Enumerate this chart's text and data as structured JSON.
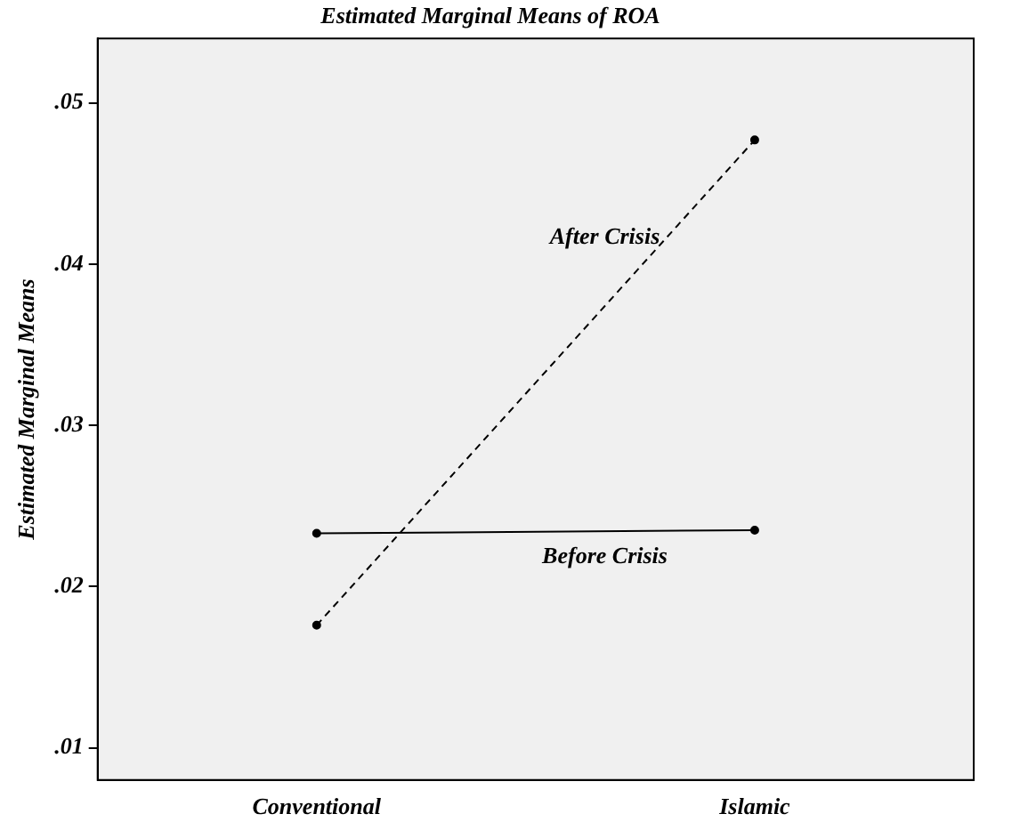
{
  "chart_data": {
    "type": "line",
    "title": "Estimated Marginal Means of ROA",
    "ylabel": "Estimated Marginal Means",
    "categories": [
      "Conventional",
      "Islamic"
    ],
    "series": [
      {
        "name": "After Crisis",
        "color": "#000000",
        "values": [
          0.0176,
          0.0477
        ],
        "line_style": "dashed"
      },
      {
        "name": "Before Crisis",
        "color": "#000000",
        "values": [
          0.0233,
          0.0235
        ],
        "line_style": "solid"
      }
    ],
    "ylim": [
      0.008,
      0.054
    ],
    "yticks": [
      {
        "value": 0.01,
        "label": ".01"
      },
      {
        "value": 0.02,
        "label": ".02"
      },
      {
        "value": 0.03,
        "label": ".03"
      },
      {
        "value": 0.04,
        "label": ".04"
      },
      {
        "value": 0.05,
        "label": ".05"
      }
    ],
    "grid": false,
    "legend": false,
    "marker": "circle"
  }
}
